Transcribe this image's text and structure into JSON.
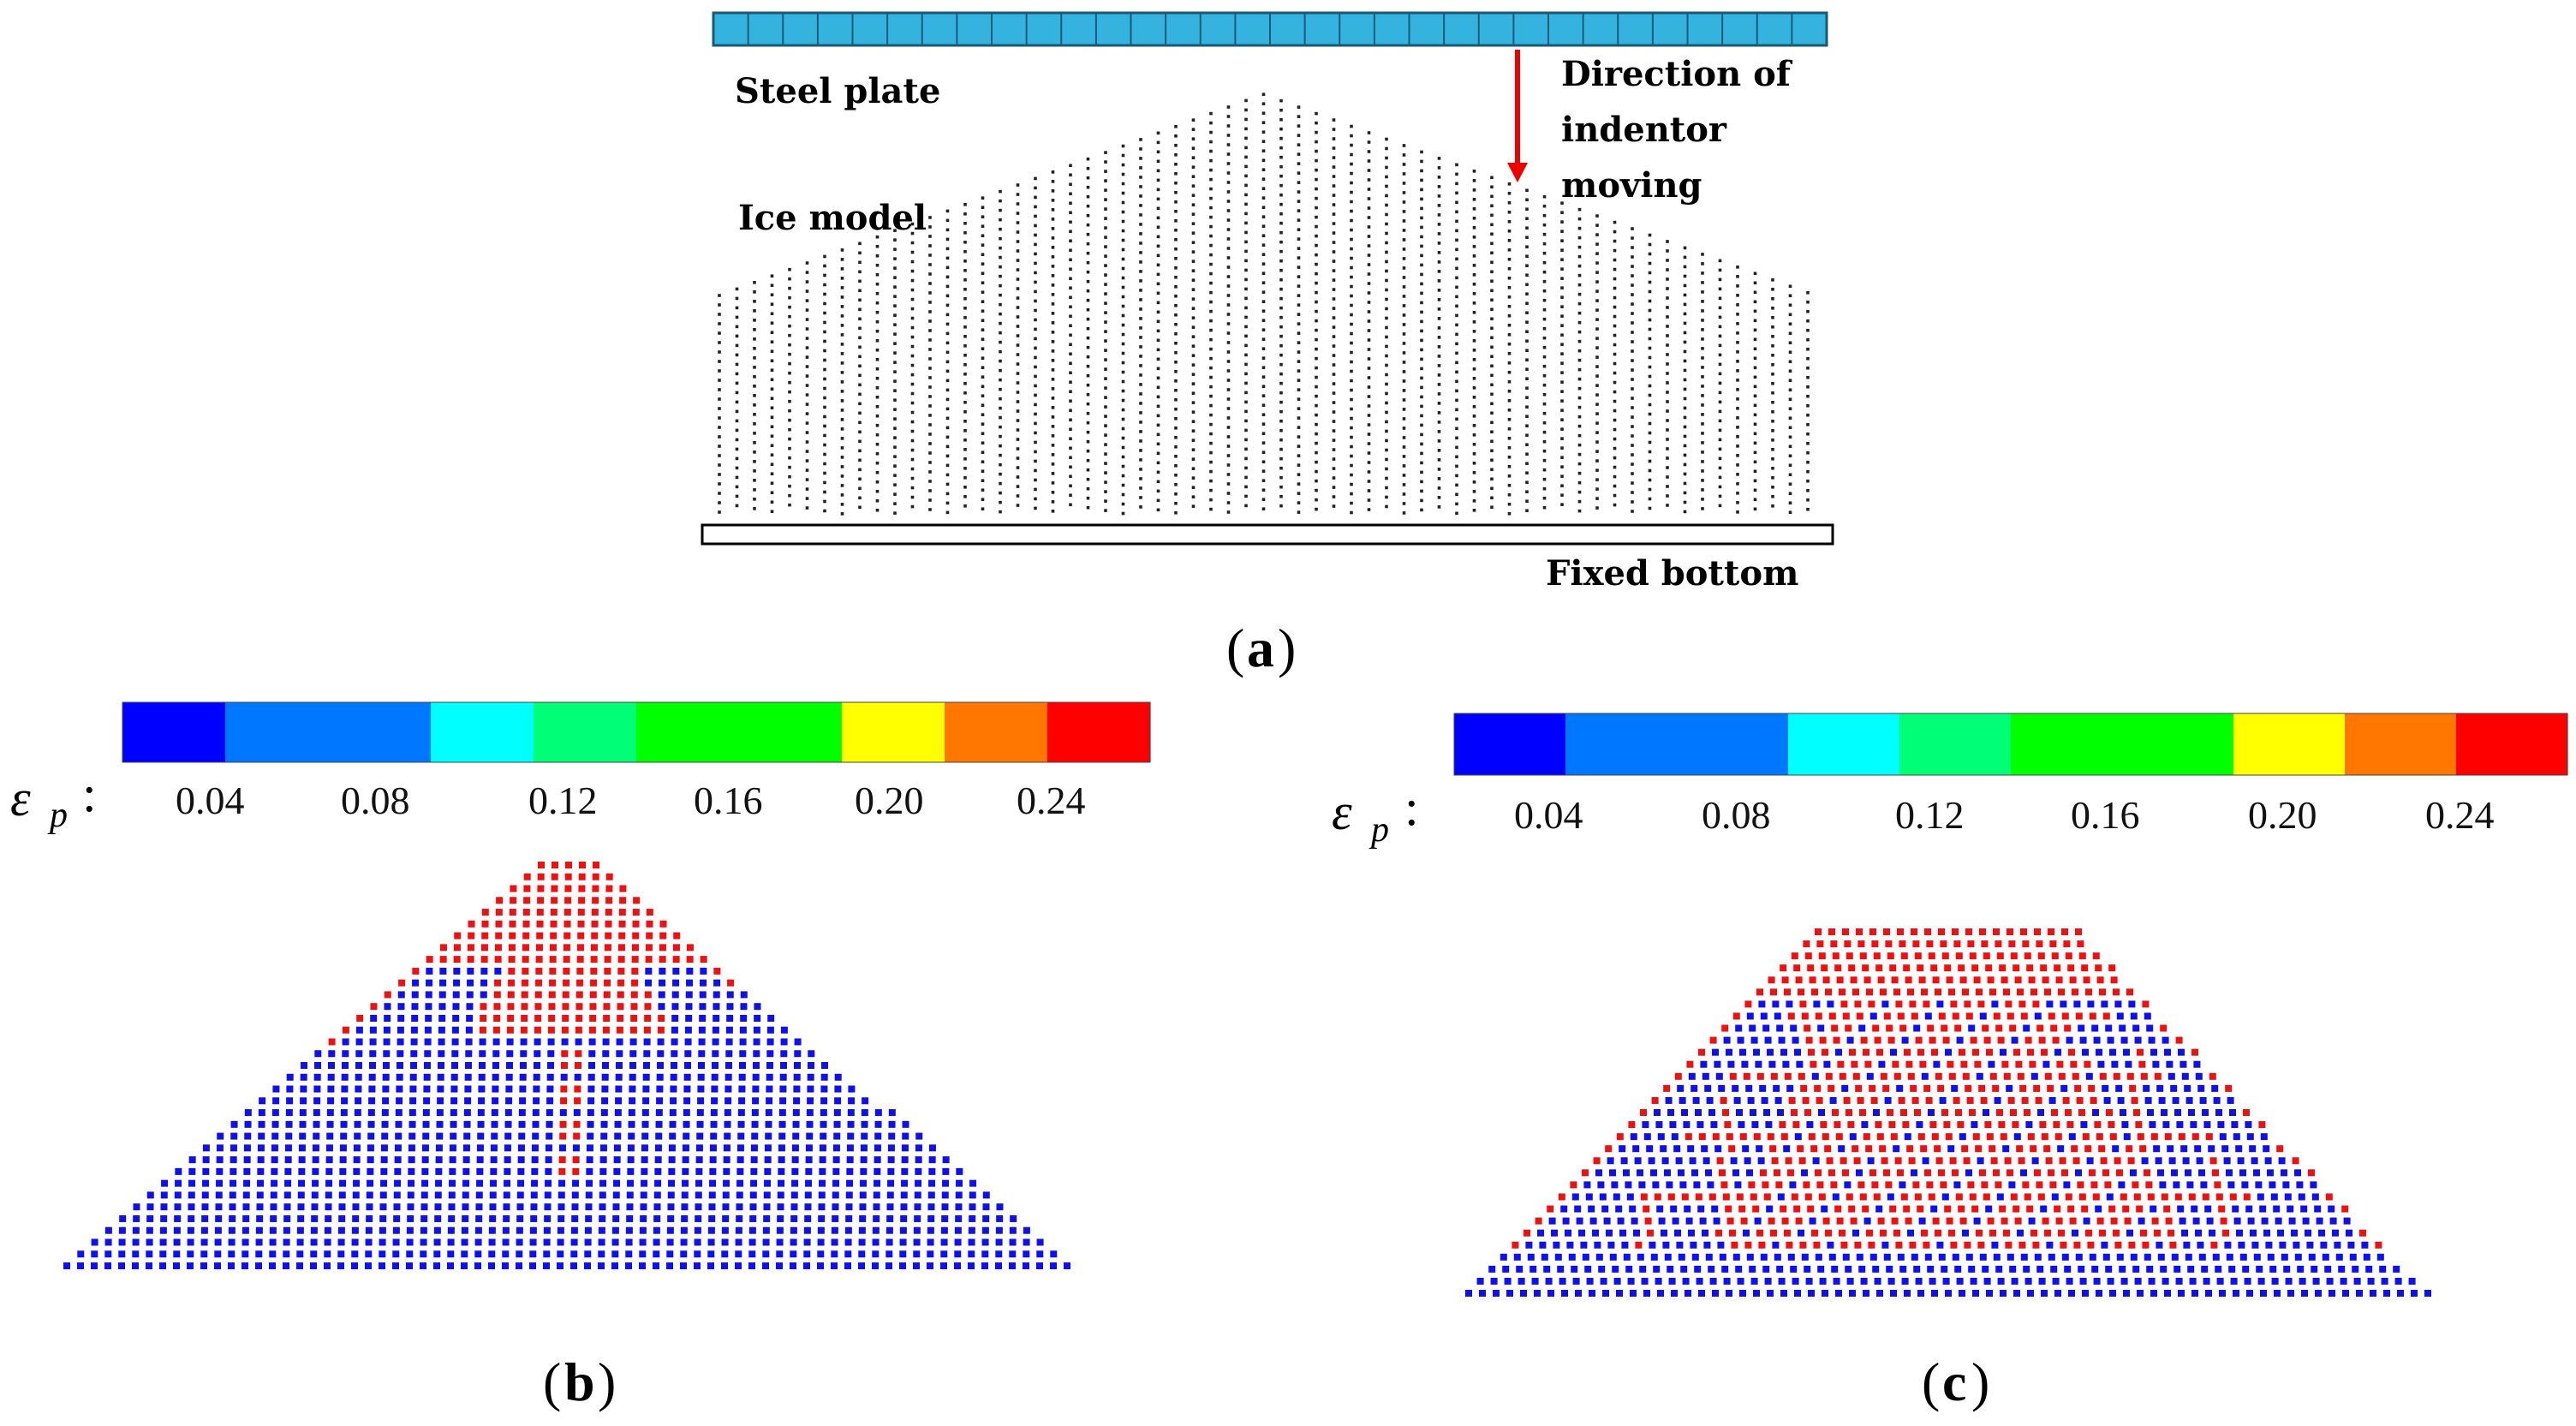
{
  "panels": {
    "a": {
      "caption": "a",
      "labels": {
        "steel_plate": "Steel plate",
        "ice_model": "Ice model",
        "direction_l1": "Direction of",
        "direction_l2": "indentor",
        "direction_l3": "moving",
        "fixed_bottom": "Fixed bottom"
      }
    },
    "b": {
      "caption": "b"
    },
    "c": {
      "caption": "c"
    }
  },
  "colorbar": {
    "symbol": "ε",
    "subscript": "p",
    "colon": ":",
    "ticks": [
      "0.04",
      "0.08",
      "0.12",
      "0.16",
      "0.20",
      "0.24"
    ],
    "colors": [
      "#0000ff",
      "#0077ff",
      "#0077ff",
      "#00ffff",
      "#00ff77",
      "#00ff00",
      "#00ff00",
      "#ffff00",
      "#ff7700",
      "#ff0000"
    ]
  },
  "colors": {
    "plate_fill": "#33b3dd",
    "plate_stroke": "#1a5a78",
    "arrow": "#ee0000",
    "particle_low": "#1010ee",
    "particle_high": "#ee1111",
    "ice_point": "#222222"
  }
}
